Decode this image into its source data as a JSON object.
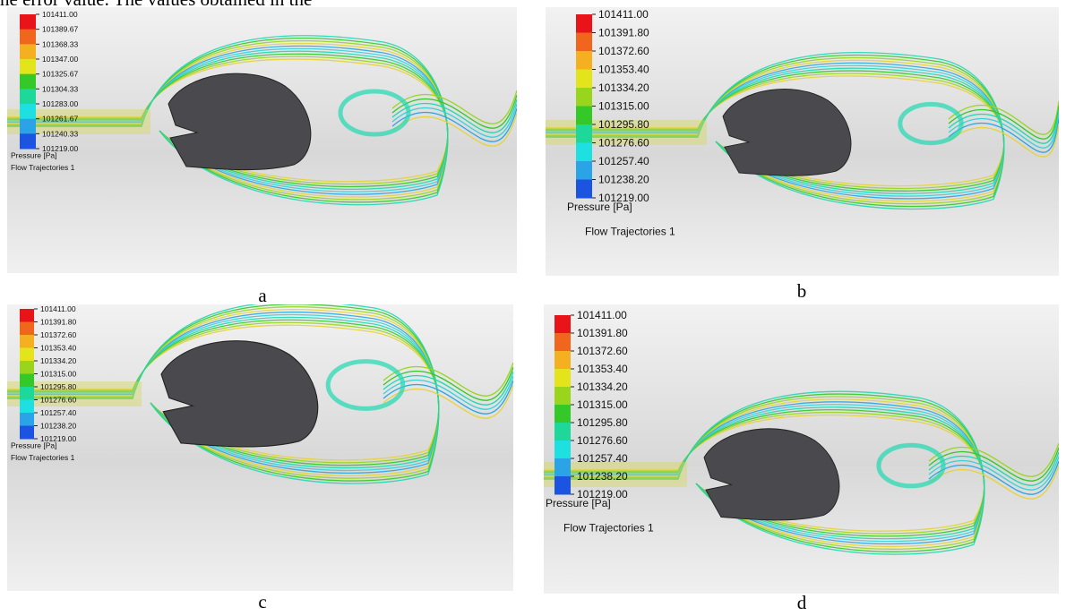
{
  "header": {
    "text": "he error value. The values obtained in the"
  },
  "panels": [
    {
      "caption": "a",
      "legend_title": "Pressure [Pa]",
      "trajectory_label": "Flow Trajectories 1",
      "legend_labels": [
        "101411.00",
        "101389.67",
        "101368.33",
        "101347.00",
        "101325.67",
        "101304.33",
        "101283.00",
        "101261.67",
        "101240.33",
        "101219.00"
      ]
    },
    {
      "caption": "b",
      "legend_title": "Pressure [Pa]",
      "trajectory_label": "Flow Trajectories 1",
      "legend_labels": [
        "101411.00",
        "101391.80",
        "101372.60",
        "101353.40",
        "101334.20",
        "101315.00",
        "101295.80",
        "101276.60",
        "101257.40",
        "101238.20",
        "101219.00"
      ]
    },
    {
      "caption": "c",
      "legend_title": "Pressure [Pa]",
      "trajectory_label": "Flow Trajectories 1",
      "legend_labels": [
        "101411.00",
        "101391.80",
        "101372.60",
        "101353.40",
        "101334.20",
        "101315.00",
        "101295.80",
        "101276.60",
        "101257.40",
        "101238.20",
        "101219.00"
      ]
    },
    {
      "caption": "d",
      "legend_title": "Pressure [Pa]",
      "trajectory_label": "Flow Trajectories 1",
      "legend_labels": [
        "101411.00",
        "101391.80",
        "101372.60",
        "101353.40",
        "101334.20",
        "101315.00",
        "101295.80",
        "101276.60",
        "101257.40",
        "101238.20",
        "101219.00"
      ]
    }
  ]
}
